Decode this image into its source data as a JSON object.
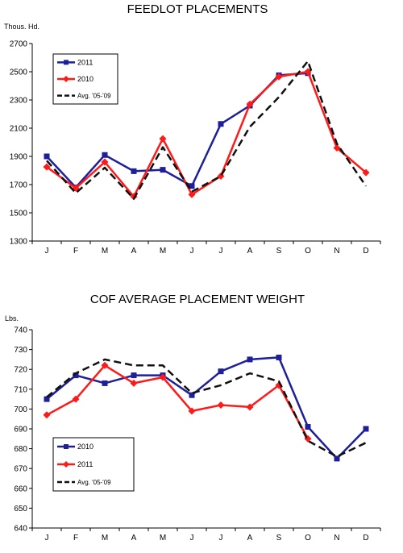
{
  "chart_data": [
    {
      "type": "line",
      "title": "FEEDLOT PLACEMENTS",
      "ylabel": "Thous. Hd.",
      "xlabel": "",
      "categories": [
        "J",
        "F",
        "M",
        "A",
        "M",
        "J",
        "J",
        "A",
        "S",
        "O",
        "N",
        "D"
      ],
      "ylim": [
        1300,
        2700
      ],
      "yticks": [
        1300,
        1500,
        1700,
        1900,
        2100,
        2300,
        2500,
        2700
      ],
      "grid": false,
      "legend_position": "top-left",
      "series": [
        {
          "name": "2011",
          "color": "#1f1f99",
          "marker": "square",
          "dash": false,
          "values": [
            1900,
            1680,
            1910,
            1795,
            1805,
            1690,
            2130,
            2260,
            2475,
            2490,
            null,
            null
          ]
        },
        {
          "name": "2010",
          "color": "#ff1a1a",
          "marker": "diamond",
          "dash": false,
          "values": [
            1825,
            1675,
            1860,
            1615,
            2025,
            1630,
            1760,
            2270,
            2465,
            2500,
            1960,
            1785
          ]
        },
        {
          "name": "Avg. '05-'09",
          "color": "#111111",
          "marker": "none",
          "dash": true,
          "values": [
            1870,
            1640,
            1820,
            1600,
            1965,
            1650,
            1760,
            2110,
            2320,
            2575,
            1990,
            1690
          ]
        }
      ]
    },
    {
      "type": "line",
      "title": "COF AVERAGE PLACEMENT WEIGHT",
      "ylabel": "Lbs.",
      "xlabel": "",
      "categories": [
        "J",
        "F",
        "M",
        "A",
        "M",
        "J",
        "J",
        "A",
        "S",
        "O",
        "N",
        "D"
      ],
      "ylim": [
        640,
        740
      ],
      "yticks": [
        640,
        650,
        660,
        670,
        680,
        690,
        700,
        710,
        720,
        730,
        740
      ],
      "grid": false,
      "legend_position": "bottom-left",
      "series": [
        {
          "name": "2010",
          "color": "#1f1f99",
          "marker": "square",
          "dash": false,
          "values": [
            705,
            717,
            713,
            717,
            717,
            707,
            719,
            725,
            726,
            691,
            675,
            690
          ]
        },
        {
          "name": "2011",
          "color": "#ff1a1a",
          "marker": "diamond",
          "dash": false,
          "values": [
            697,
            705,
            722,
            713,
            716,
            699,
            702,
            701,
            712,
            685,
            null,
            null
          ]
        },
        {
          "name": "Avg. '05-'09",
          "color": "#111111",
          "marker": "none",
          "dash": true,
          "values": [
            706,
            718,
            725,
            722,
            722,
            708,
            712,
            718,
            714,
            684,
            676,
            683
          ]
        }
      ]
    }
  ]
}
